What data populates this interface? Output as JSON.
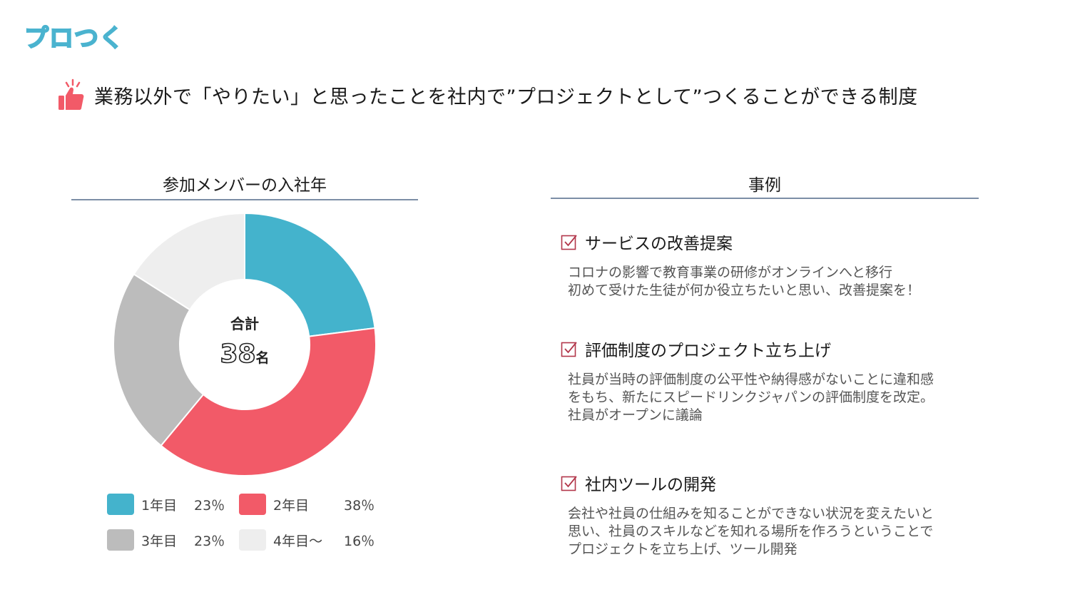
{
  "logo": "プロつく",
  "headline": "業務以外で「やりたい」と思ったことを社内で”プロジェクトとして”つくることができる制度",
  "left_section": {
    "title": "参加メンバーの入社年"
  },
  "right_section": {
    "title": "事例"
  },
  "donut_center": {
    "label": "合計",
    "value": "38",
    "unit": "名"
  },
  "chart_data": {
    "type": "pie",
    "title": "参加メンバーの入社年",
    "categories": [
      "1年目",
      "2年目",
      "3年目",
      "4年目〜"
    ],
    "values": [
      23,
      38,
      23,
      16
    ],
    "value_labels": [
      "23％",
      "38％",
      "23％",
      "16％"
    ],
    "colors": [
      "#44b3cc",
      "#f25a68",
      "#bcbcbc",
      "#eeeeee"
    ],
    "legend_position": "bottom",
    "donut": true
  },
  "cases": [
    {
      "title": "サービスの改善提案",
      "lines": [
        "コロナの影響で教育事業の研修がオンラインへと移行",
        "初めて受けた生徒が何か役立ちたいと思い、改善提案を！"
      ]
    },
    {
      "title": "評価制度のプロジェクト立ち上げ",
      "lines": [
        "社員が当時の評価制度の公平性や納得感がないことに違和感",
        "をもち、新たにスピードリンクジャパンの評価制度を改定。",
        "社員がオープンに議論"
      ]
    },
    {
      "title": "社内ツールの開発",
      "lines": [
        "会社や社員の仕組みを知ることができない状況を変えたいと",
        "思い、社員のスキルなどを知れる場所を作ろうということで",
        "プロジェクトを立ち上げ、ツール開発"
      ]
    }
  ],
  "icons": {
    "headline": "thumbs-up-icon",
    "case": "checkbox-icon"
  },
  "colors": {
    "accent": "#44b3cc",
    "brand_red": "#f25a68",
    "rule": "#7c8ea6"
  }
}
